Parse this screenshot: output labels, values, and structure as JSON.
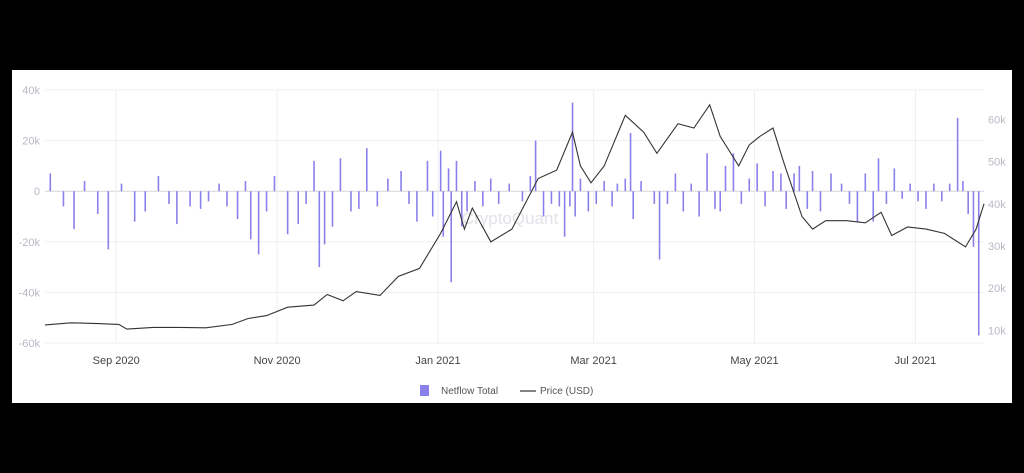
{
  "watermark": "CryptoQuant",
  "colors": {
    "netflow": "#8a80ea",
    "price": "#333333",
    "grid": "#efefef",
    "zero": "#d6d6d6"
  },
  "chart_data": {
    "type": "bar+line",
    "x_range": [
      "2020-08-05",
      "2021-07-27"
    ],
    "xticks": [
      {
        "label": "Sep 2020",
        "date": "2020-09-01"
      },
      {
        "label": "Nov 2020",
        "date": "2020-11-01"
      },
      {
        "label": "Jan 2021",
        "date": "2021-01-01"
      },
      {
        "label": "Mar 2021",
        "date": "2021-03-01"
      },
      {
        "label": "May 2021",
        "date": "2021-05-01"
      },
      {
        "label": "Jul 2021",
        "date": "2021-07-01"
      }
    ],
    "y_left": {
      "ylim": [
        -60000,
        40000
      ],
      "ticks": [
        "-60k",
        "-40k",
        "-20k",
        "0",
        "20k",
        "40k"
      ],
      "tick_values": [
        -60000,
        -40000,
        -20000,
        0,
        20000,
        40000
      ]
    },
    "y_right": {
      "ylim": [
        7000,
        67000
      ],
      "ticks": [
        "10k",
        "20k",
        "30k",
        "40k",
        "50k",
        "60k"
      ],
      "tick_values": [
        10000,
        20000,
        30000,
        40000,
        50000,
        60000
      ]
    },
    "legend": {
      "placement": "bottom-center",
      "entries": [
        {
          "name": "Netflow Total",
          "kind": "bar"
        },
        {
          "name": "Price (USD)",
          "kind": "line"
        }
      ]
    },
    "series": [
      {
        "name": "Netflow Total",
        "kind": "bar",
        "points": [
          [
            "2020-08-07",
            7000
          ],
          [
            "2020-08-12",
            -6000
          ],
          [
            "2020-08-16",
            -15000
          ],
          [
            "2020-08-20",
            4000
          ],
          [
            "2020-08-25",
            -9000
          ],
          [
            "2020-08-29",
            -23000
          ],
          [
            "2020-09-03",
            3000
          ],
          [
            "2020-09-08",
            -12000
          ],
          [
            "2020-09-12",
            -8000
          ],
          [
            "2020-09-17",
            6000
          ],
          [
            "2020-09-21",
            -5000
          ],
          [
            "2020-09-24",
            -13000
          ],
          [
            "2020-09-29",
            -6000
          ],
          [
            "2020-10-03",
            -7000
          ],
          [
            "2020-10-06",
            -4000
          ],
          [
            "2020-10-10",
            3000
          ],
          [
            "2020-10-13",
            -6000
          ],
          [
            "2020-10-17",
            -11000
          ],
          [
            "2020-10-20",
            4000
          ],
          [
            "2020-10-22",
            -19000
          ],
          [
            "2020-10-25",
            -25000
          ],
          [
            "2020-10-28",
            -8000
          ],
          [
            "2020-10-31",
            6000
          ],
          [
            "2020-11-05",
            -17000
          ],
          [
            "2020-11-09",
            -13000
          ],
          [
            "2020-11-12",
            -5000
          ],
          [
            "2020-11-15",
            12000
          ],
          [
            "2020-11-17",
            -30000
          ],
          [
            "2020-11-19",
            -21000
          ],
          [
            "2020-11-22",
            -14000
          ],
          [
            "2020-11-25",
            13000
          ],
          [
            "2020-11-29",
            -8000
          ],
          [
            "2020-12-02",
            -7000
          ],
          [
            "2020-12-05",
            17000
          ],
          [
            "2020-12-09",
            -6000
          ],
          [
            "2020-12-13",
            5000
          ],
          [
            "2020-12-18",
            8000
          ],
          [
            "2020-12-21",
            -5000
          ],
          [
            "2020-12-24",
            -12000
          ],
          [
            "2020-12-28",
            12000
          ],
          [
            "2020-12-30",
            -10000
          ],
          [
            "2021-01-02",
            16000
          ],
          [
            "2021-01-03",
            -18000
          ],
          [
            "2021-01-05",
            9000
          ],
          [
            "2021-01-06",
            -36000
          ],
          [
            "2021-01-08",
            12000
          ],
          [
            "2021-01-10",
            -14000
          ],
          [
            "2021-01-12",
            -8000
          ],
          [
            "2021-01-15",
            4000
          ],
          [
            "2021-01-18",
            -6000
          ],
          [
            "2021-01-21",
            5000
          ],
          [
            "2021-01-24",
            -5000
          ],
          [
            "2021-01-28",
            3000
          ],
          [
            "2021-02-02",
            -4000
          ],
          [
            "2021-02-05",
            6000
          ],
          [
            "2021-02-07",
            20000
          ],
          [
            "2021-02-10",
            -10000
          ],
          [
            "2021-02-13",
            -5000
          ],
          [
            "2021-02-16",
            -6000
          ],
          [
            "2021-02-18",
            -18000
          ],
          [
            "2021-02-20",
            -6000
          ],
          [
            "2021-02-21",
            35000
          ],
          [
            "2021-02-22",
            -10000
          ],
          [
            "2021-02-24",
            5000
          ],
          [
            "2021-02-27",
            -8000
          ],
          [
            "2021-03-02",
            -5000
          ],
          [
            "2021-03-05",
            4000
          ],
          [
            "2021-03-08",
            -6000
          ],
          [
            "2021-03-10",
            3000
          ],
          [
            "2021-03-13",
            5000
          ],
          [
            "2021-03-15",
            23000
          ],
          [
            "2021-03-16",
            -11000
          ],
          [
            "2021-03-19",
            4000
          ],
          [
            "2021-03-24",
            -5000
          ],
          [
            "2021-03-26",
            -27000
          ],
          [
            "2021-03-29",
            -5000
          ],
          [
            "2021-04-01",
            7000
          ],
          [
            "2021-04-04",
            -8000
          ],
          [
            "2021-04-07",
            3000
          ],
          [
            "2021-04-10",
            -10000
          ],
          [
            "2021-04-13",
            15000
          ],
          [
            "2021-04-16",
            -7000
          ],
          [
            "2021-04-18",
            -8000
          ],
          [
            "2021-04-20",
            10000
          ],
          [
            "2021-04-23",
            15000
          ],
          [
            "2021-04-26",
            -5000
          ],
          [
            "2021-04-29",
            5000
          ],
          [
            "2021-05-02",
            11000
          ],
          [
            "2021-05-05",
            -6000
          ],
          [
            "2021-05-08",
            8000
          ],
          [
            "2021-05-11",
            7000
          ],
          [
            "2021-05-13",
            -7000
          ],
          [
            "2021-05-16",
            7000
          ],
          [
            "2021-05-18",
            10000
          ],
          [
            "2021-05-21",
            -7000
          ],
          [
            "2021-05-23",
            8000
          ],
          [
            "2021-05-26",
            -8000
          ],
          [
            "2021-05-30",
            7000
          ],
          [
            "2021-06-03",
            3000
          ],
          [
            "2021-06-06",
            -5000
          ],
          [
            "2021-06-09",
            -12000
          ],
          [
            "2021-06-12",
            7000
          ],
          [
            "2021-06-15",
            -12000
          ],
          [
            "2021-06-17",
            13000
          ],
          [
            "2021-06-20",
            -5000
          ],
          [
            "2021-06-23",
            9000
          ],
          [
            "2021-06-26",
            -3000
          ],
          [
            "2021-06-29",
            3000
          ],
          [
            "2021-07-02",
            -4000
          ],
          [
            "2021-07-05",
            -7000
          ],
          [
            "2021-07-08",
            3000
          ],
          [
            "2021-07-11",
            -4000
          ],
          [
            "2021-07-14",
            3000
          ],
          [
            "2021-07-17",
            29000
          ],
          [
            "2021-07-19",
            4000
          ],
          [
            "2021-07-21",
            -9000
          ],
          [
            "2021-07-23",
            -22000
          ],
          [
            "2021-07-25",
            -57000
          ]
        ]
      },
      {
        "name": "Price (USD)",
        "kind": "line",
        "points": [
          [
            "2020-08-05",
            11300
          ],
          [
            "2020-08-15",
            11800
          ],
          [
            "2020-08-25",
            11600
          ],
          [
            "2020-09-02",
            11400
          ],
          [
            "2020-09-05",
            10300
          ],
          [
            "2020-09-15",
            10700
          ],
          [
            "2020-09-25",
            10700
          ],
          [
            "2020-10-05",
            10600
          ],
          [
            "2020-10-15",
            11400
          ],
          [
            "2020-10-21",
            12800
          ],
          [
            "2020-10-28",
            13500
          ],
          [
            "2020-11-05",
            15500
          ],
          [
            "2020-11-15",
            16000
          ],
          [
            "2020-11-20",
            18500
          ],
          [
            "2020-11-26",
            17000
          ],
          [
            "2020-12-01",
            19200
          ],
          [
            "2020-12-10",
            18300
          ],
          [
            "2020-12-17",
            22800
          ],
          [
            "2020-12-25",
            24700
          ],
          [
            "2021-01-02",
            33000
          ],
          [
            "2021-01-08",
            40500
          ],
          [
            "2021-01-11",
            34000
          ],
          [
            "2021-01-14",
            39000
          ],
          [
            "2021-01-21",
            31000
          ],
          [
            "2021-01-29",
            34000
          ],
          [
            "2021-02-08",
            46000
          ],
          [
            "2021-02-15",
            48000
          ],
          [
            "2021-02-21",
            57000
          ],
          [
            "2021-02-24",
            49000
          ],
          [
            "2021-02-28",
            45000
          ],
          [
            "2021-03-05",
            49000
          ],
          [
            "2021-03-13",
            61000
          ],
          [
            "2021-03-20",
            57000
          ],
          [
            "2021-03-25",
            52000
          ],
          [
            "2021-04-02",
            59000
          ],
          [
            "2021-04-08",
            58000
          ],
          [
            "2021-04-14",
            63500
          ],
          [
            "2021-04-18",
            56000
          ],
          [
            "2021-04-25",
            49000
          ],
          [
            "2021-04-29",
            54000
          ],
          [
            "2021-05-03",
            56000
          ],
          [
            "2021-05-08",
            58000
          ],
          [
            "2021-05-12",
            50000
          ],
          [
            "2021-05-19",
            37000
          ],
          [
            "2021-05-23",
            34000
          ],
          [
            "2021-05-28",
            36000
          ],
          [
            "2021-06-05",
            36000
          ],
          [
            "2021-06-12",
            35500
          ],
          [
            "2021-06-18",
            38000
          ],
          [
            "2021-06-22",
            32500
          ],
          [
            "2021-06-28",
            34500
          ],
          [
            "2021-07-05",
            34000
          ],
          [
            "2021-07-12",
            33000
          ],
          [
            "2021-07-20",
            29800
          ],
          [
            "2021-07-24",
            34000
          ],
          [
            "2021-07-27",
            40000
          ]
        ]
      }
    ]
  }
}
